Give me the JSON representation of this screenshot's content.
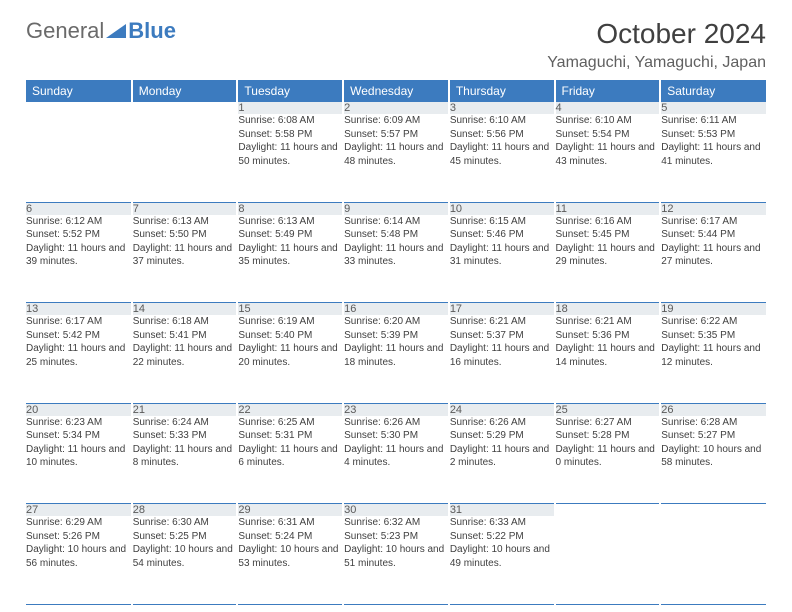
{
  "logo": {
    "part1": "General",
    "part2": "Blue"
  },
  "title": "October 2024",
  "location": "Yamaguchi, Yamaguchi, Japan",
  "colors": {
    "header_bg": "#3c7bbf",
    "header_text": "#ffffff",
    "daynum_bg": "#e8ecef",
    "border": "#3c7bbf",
    "body_text": "#404040",
    "background": "#ffffff"
  },
  "weekdays": [
    "Sunday",
    "Monday",
    "Tuesday",
    "Wednesday",
    "Thursday",
    "Friday",
    "Saturday"
  ],
  "weeks": [
    [
      {
        "n": "",
        "sr": "",
        "ss": "",
        "dl": ""
      },
      {
        "n": "",
        "sr": "",
        "ss": "",
        "dl": ""
      },
      {
        "n": "1",
        "sr": "Sunrise: 6:08 AM",
        "ss": "Sunset: 5:58 PM",
        "dl": "Daylight: 11 hours and 50 minutes."
      },
      {
        "n": "2",
        "sr": "Sunrise: 6:09 AM",
        "ss": "Sunset: 5:57 PM",
        "dl": "Daylight: 11 hours and 48 minutes."
      },
      {
        "n": "3",
        "sr": "Sunrise: 6:10 AM",
        "ss": "Sunset: 5:56 PM",
        "dl": "Daylight: 11 hours and 45 minutes."
      },
      {
        "n": "4",
        "sr": "Sunrise: 6:10 AM",
        "ss": "Sunset: 5:54 PM",
        "dl": "Daylight: 11 hours and 43 minutes."
      },
      {
        "n": "5",
        "sr": "Sunrise: 6:11 AM",
        "ss": "Sunset: 5:53 PM",
        "dl": "Daylight: 11 hours and 41 minutes."
      }
    ],
    [
      {
        "n": "6",
        "sr": "Sunrise: 6:12 AM",
        "ss": "Sunset: 5:52 PM",
        "dl": "Daylight: 11 hours and 39 minutes."
      },
      {
        "n": "7",
        "sr": "Sunrise: 6:13 AM",
        "ss": "Sunset: 5:50 PM",
        "dl": "Daylight: 11 hours and 37 minutes."
      },
      {
        "n": "8",
        "sr": "Sunrise: 6:13 AM",
        "ss": "Sunset: 5:49 PM",
        "dl": "Daylight: 11 hours and 35 minutes."
      },
      {
        "n": "9",
        "sr": "Sunrise: 6:14 AM",
        "ss": "Sunset: 5:48 PM",
        "dl": "Daylight: 11 hours and 33 minutes."
      },
      {
        "n": "10",
        "sr": "Sunrise: 6:15 AM",
        "ss": "Sunset: 5:46 PM",
        "dl": "Daylight: 11 hours and 31 minutes."
      },
      {
        "n": "11",
        "sr": "Sunrise: 6:16 AM",
        "ss": "Sunset: 5:45 PM",
        "dl": "Daylight: 11 hours and 29 minutes."
      },
      {
        "n": "12",
        "sr": "Sunrise: 6:17 AM",
        "ss": "Sunset: 5:44 PM",
        "dl": "Daylight: 11 hours and 27 minutes."
      }
    ],
    [
      {
        "n": "13",
        "sr": "Sunrise: 6:17 AM",
        "ss": "Sunset: 5:42 PM",
        "dl": "Daylight: 11 hours and 25 minutes."
      },
      {
        "n": "14",
        "sr": "Sunrise: 6:18 AM",
        "ss": "Sunset: 5:41 PM",
        "dl": "Daylight: 11 hours and 22 minutes."
      },
      {
        "n": "15",
        "sr": "Sunrise: 6:19 AM",
        "ss": "Sunset: 5:40 PM",
        "dl": "Daylight: 11 hours and 20 minutes."
      },
      {
        "n": "16",
        "sr": "Sunrise: 6:20 AM",
        "ss": "Sunset: 5:39 PM",
        "dl": "Daylight: 11 hours and 18 minutes."
      },
      {
        "n": "17",
        "sr": "Sunrise: 6:21 AM",
        "ss": "Sunset: 5:37 PM",
        "dl": "Daylight: 11 hours and 16 minutes."
      },
      {
        "n": "18",
        "sr": "Sunrise: 6:21 AM",
        "ss": "Sunset: 5:36 PM",
        "dl": "Daylight: 11 hours and 14 minutes."
      },
      {
        "n": "19",
        "sr": "Sunrise: 6:22 AM",
        "ss": "Sunset: 5:35 PM",
        "dl": "Daylight: 11 hours and 12 minutes."
      }
    ],
    [
      {
        "n": "20",
        "sr": "Sunrise: 6:23 AM",
        "ss": "Sunset: 5:34 PM",
        "dl": "Daylight: 11 hours and 10 minutes."
      },
      {
        "n": "21",
        "sr": "Sunrise: 6:24 AM",
        "ss": "Sunset: 5:33 PM",
        "dl": "Daylight: 11 hours and 8 minutes."
      },
      {
        "n": "22",
        "sr": "Sunrise: 6:25 AM",
        "ss": "Sunset: 5:31 PM",
        "dl": "Daylight: 11 hours and 6 minutes."
      },
      {
        "n": "23",
        "sr": "Sunrise: 6:26 AM",
        "ss": "Sunset: 5:30 PM",
        "dl": "Daylight: 11 hours and 4 minutes."
      },
      {
        "n": "24",
        "sr": "Sunrise: 6:26 AM",
        "ss": "Sunset: 5:29 PM",
        "dl": "Daylight: 11 hours and 2 minutes."
      },
      {
        "n": "25",
        "sr": "Sunrise: 6:27 AM",
        "ss": "Sunset: 5:28 PM",
        "dl": "Daylight: 11 hours and 0 minutes."
      },
      {
        "n": "26",
        "sr": "Sunrise: 6:28 AM",
        "ss": "Sunset: 5:27 PM",
        "dl": "Daylight: 10 hours and 58 minutes."
      }
    ],
    [
      {
        "n": "27",
        "sr": "Sunrise: 6:29 AM",
        "ss": "Sunset: 5:26 PM",
        "dl": "Daylight: 10 hours and 56 minutes."
      },
      {
        "n": "28",
        "sr": "Sunrise: 6:30 AM",
        "ss": "Sunset: 5:25 PM",
        "dl": "Daylight: 10 hours and 54 minutes."
      },
      {
        "n": "29",
        "sr": "Sunrise: 6:31 AM",
        "ss": "Sunset: 5:24 PM",
        "dl": "Daylight: 10 hours and 53 minutes."
      },
      {
        "n": "30",
        "sr": "Sunrise: 6:32 AM",
        "ss": "Sunset: 5:23 PM",
        "dl": "Daylight: 10 hours and 51 minutes."
      },
      {
        "n": "31",
        "sr": "Sunrise: 6:33 AM",
        "ss": "Sunset: 5:22 PM",
        "dl": "Daylight: 10 hours and 49 minutes."
      },
      {
        "n": "",
        "sr": "",
        "ss": "",
        "dl": ""
      },
      {
        "n": "",
        "sr": "",
        "ss": "",
        "dl": ""
      }
    ]
  ]
}
